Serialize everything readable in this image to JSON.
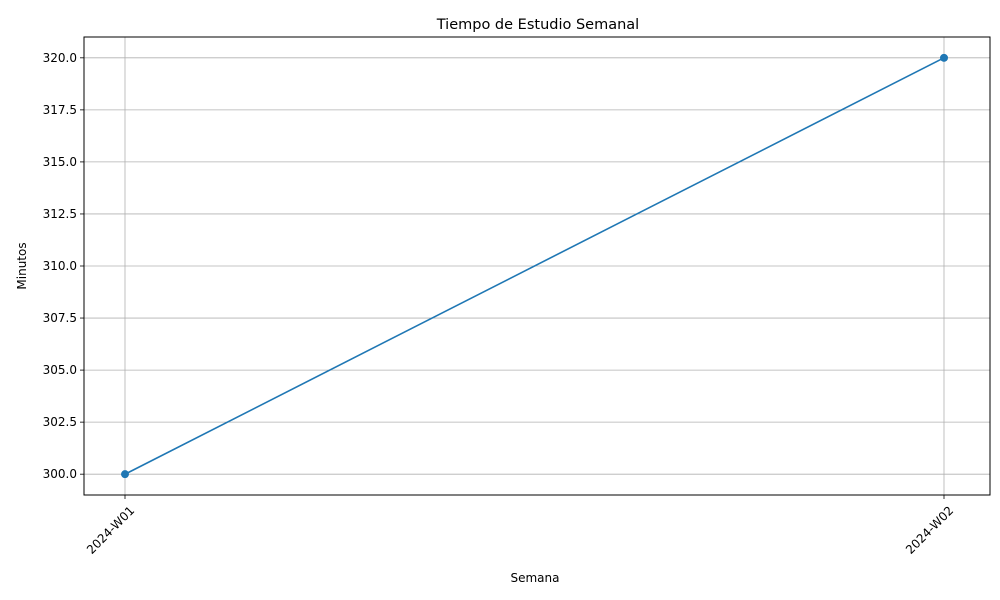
{
  "chart_data": {
    "type": "line",
    "title": "Tiempo de Estudio Semanal",
    "xlabel": "Semana",
    "ylabel": "Minutos",
    "categories": [
      "2024-W01",
      "2024-W02"
    ],
    "series": [
      {
        "values": [
          300,
          320
        ],
        "color": "#1f77b4",
        "marker": "circle"
      }
    ],
    "ylim": [
      299,
      321
    ],
    "yticks": [
      300.0,
      302.5,
      305.0,
      307.5,
      310.0,
      312.5,
      315.0,
      317.5,
      320.0
    ],
    "ytick_labels": [
      "300.0",
      "302.5",
      "305.0",
      "307.5",
      "310.0",
      "312.5",
      "315.0",
      "317.5",
      "320.0"
    ],
    "grid": true,
    "legend": false,
    "xtick_rotation": 45
  }
}
